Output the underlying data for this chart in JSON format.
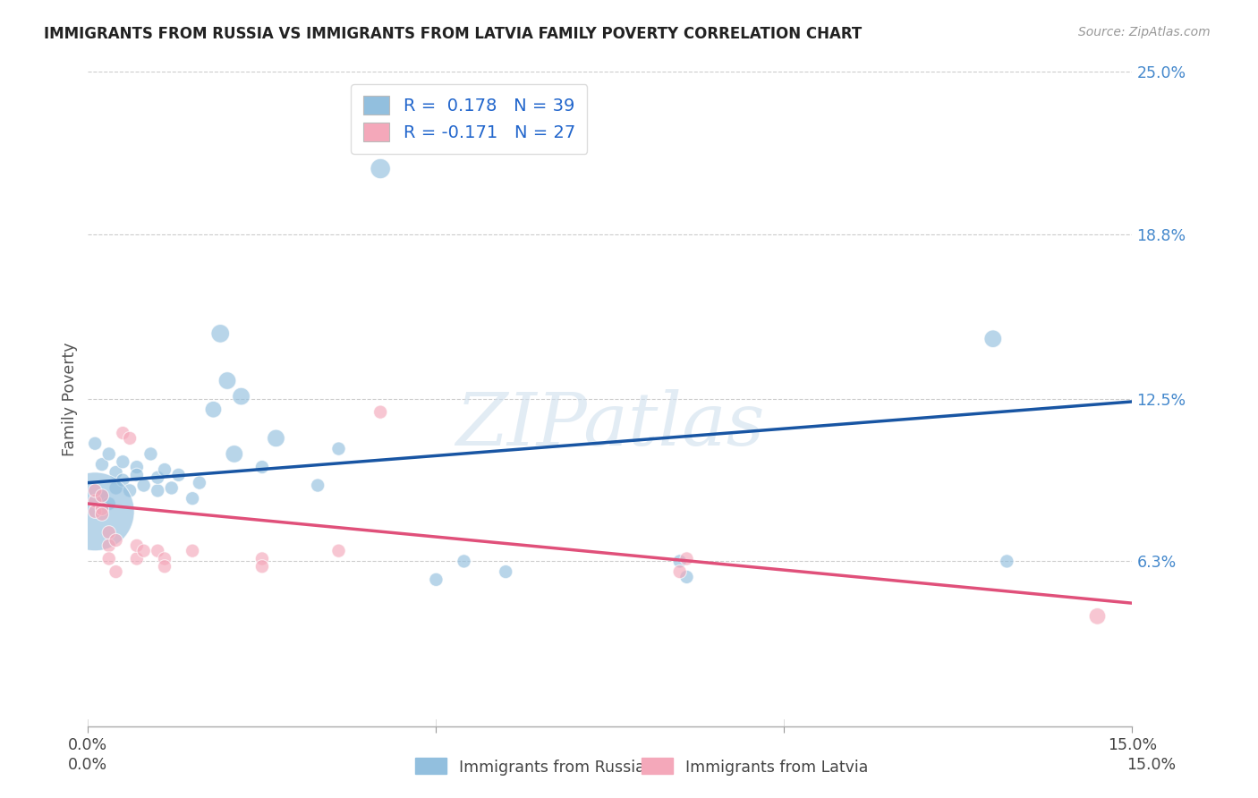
{
  "title": "IMMIGRANTS FROM RUSSIA VS IMMIGRANTS FROM LATVIA FAMILY POVERTY CORRELATION CHART",
  "source": "Source: ZipAtlas.com",
  "ylabel": "Family Poverty",
  "x_min": 0.0,
  "x_max": 0.15,
  "y_min": 0.0,
  "y_max": 0.25,
  "y_ticks": [
    0.063,
    0.125,
    0.188,
    0.25
  ],
  "y_tick_labels": [
    "6.3%",
    "12.5%",
    "18.8%",
    "25.0%"
  ],
  "x_ticks": [
    0.0,
    0.05,
    0.1,
    0.15
  ],
  "x_tick_labels": [
    "0.0%",
    "",
    "",
    "15.0%"
  ],
  "russia_color": "#92bfde",
  "latvia_color": "#f4a8ba",
  "russia_line_color": "#1855a3",
  "latvia_line_color": "#e0507a",
  "russia_line_start_y": 0.093,
  "russia_line_end_y": 0.124,
  "latvia_line_start_y": 0.085,
  "latvia_line_end_y": 0.047,
  "legend_r_russia": "0.178",
  "legend_n_russia": "39",
  "legend_r_latvia": "-0.171",
  "legend_n_latvia": "27",
  "legend_color": "#2266cc",
  "watermark_text": "ZIPatlas",
  "russia_points": [
    [
      0.001,
      0.108
    ],
    [
      0.002,
      0.1
    ],
    [
      0.003,
      0.104
    ],
    [
      0.004,
      0.097
    ],
    [
      0.004,
      0.091
    ],
    [
      0.005,
      0.101
    ],
    [
      0.005,
      0.094
    ],
    [
      0.006,
      0.09
    ],
    [
      0.007,
      0.099
    ],
    [
      0.007,
      0.096
    ],
    [
      0.008,
      0.092
    ],
    [
      0.009,
      0.104
    ],
    [
      0.01,
      0.09
    ],
    [
      0.01,
      0.095
    ],
    [
      0.011,
      0.098
    ],
    [
      0.012,
      0.091
    ],
    [
      0.013,
      0.096
    ],
    [
      0.015,
      0.087
    ],
    [
      0.016,
      0.093
    ],
    [
      0.018,
      0.121
    ],
    [
      0.019,
      0.15
    ],
    [
      0.02,
      0.132
    ],
    [
      0.021,
      0.104
    ],
    [
      0.022,
      0.126
    ],
    [
      0.025,
      0.099
    ],
    [
      0.027,
      0.11
    ],
    [
      0.033,
      0.092
    ],
    [
      0.036,
      0.106
    ],
    [
      0.042,
      0.213
    ],
    [
      0.05,
      0.056
    ],
    [
      0.054,
      0.063
    ],
    [
      0.06,
      0.059
    ],
    [
      0.085,
      0.063
    ],
    [
      0.086,
      0.057
    ],
    [
      0.13,
      0.148
    ],
    [
      0.132,
      0.063
    ],
    [
      0.002,
      0.088
    ],
    [
      0.003,
      0.085
    ],
    [
      0.001,
      0.082
    ]
  ],
  "russia_sizes": [
    120,
    120,
    120,
    120,
    120,
    120,
    120,
    120,
    120,
    120,
    120,
    120,
    120,
    120,
    120,
    120,
    120,
    120,
    120,
    180,
    220,
    200,
    200,
    200,
    120,
    200,
    120,
    120,
    260,
    120,
    120,
    120,
    120,
    120,
    200,
    120,
    120,
    120,
    4000
  ],
  "latvia_points": [
    [
      0.001,
      0.086
    ],
    [
      0.001,
      0.09
    ],
    [
      0.001,
      0.082
    ],
    [
      0.002,
      0.083
    ],
    [
      0.002,
      0.088
    ],
    [
      0.002,
      0.081
    ],
    [
      0.003,
      0.074
    ],
    [
      0.003,
      0.069
    ],
    [
      0.003,
      0.064
    ],
    [
      0.004,
      0.059
    ],
    [
      0.004,
      0.071
    ],
    [
      0.005,
      0.112
    ],
    [
      0.006,
      0.11
    ],
    [
      0.007,
      0.064
    ],
    [
      0.007,
      0.069
    ],
    [
      0.008,
      0.067
    ],
    [
      0.01,
      0.067
    ],
    [
      0.011,
      0.064
    ],
    [
      0.011,
      0.061
    ],
    [
      0.015,
      0.067
    ],
    [
      0.025,
      0.064
    ],
    [
      0.025,
      0.061
    ],
    [
      0.036,
      0.067
    ],
    [
      0.042,
      0.12
    ],
    [
      0.085,
      0.059
    ],
    [
      0.086,
      0.064
    ],
    [
      0.145,
      0.042
    ]
  ],
  "latvia_sizes": [
    120,
    120,
    120,
    120,
    120,
    120,
    120,
    120,
    120,
    120,
    120,
    120,
    120,
    120,
    120,
    120,
    120,
    120,
    120,
    120,
    120,
    120,
    120,
    120,
    120,
    120,
    180
  ]
}
